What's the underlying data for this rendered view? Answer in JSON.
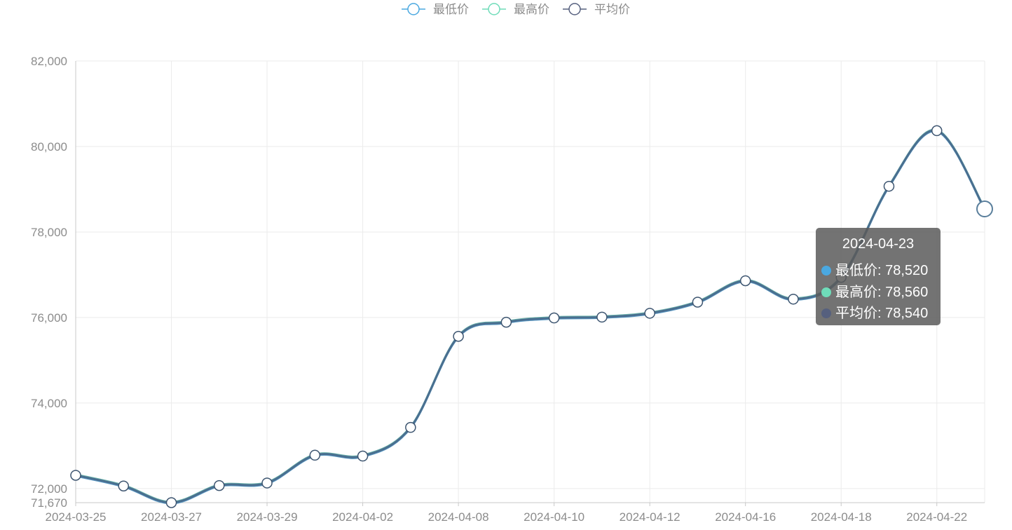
{
  "chart_data": {
    "type": "line",
    "categories": [
      "2024-03-25",
      "2024-03-26",
      "2024-03-27",
      "2024-03-28",
      "2024-03-29",
      "2024-04-01",
      "2024-04-02",
      "2024-04-03",
      "2024-04-08",
      "2024-04-09",
      "2024-04-10",
      "2024-04-11",
      "2024-04-12",
      "2024-04-15",
      "2024-04-16",
      "2024-04-17",
      "2024-04-18",
      "2024-04-19",
      "2024-04-22",
      "2024-04-23"
    ],
    "tick_labels": [
      "2024-03-25",
      "2024-03-27",
      "2024-03-29",
      "2024-04-02",
      "2024-04-08",
      "2024-04-10",
      "2024-04-12",
      "2024-04-16",
      "2024-04-18",
      "2024-04-22"
    ],
    "series": [
      {
        "name": "最低价",
        "color": "#4aa8e0",
        "values": [
          72290,
          72040,
          71650,
          72050,
          72110,
          72760,
          72740,
          73410,
          75540,
          75870,
          75970,
          75990,
          76080,
          76340,
          76840,
          76410,
          76920,
          79050,
          80350,
          78520
        ]
      },
      {
        "name": "最高价",
        "color": "#6fdcb9",
        "values": [
          72330,
          72080,
          71690,
          72090,
          72150,
          72800,
          72780,
          73450,
          75580,
          75910,
          76010,
          76030,
          76120,
          76380,
          76880,
          76450,
          76960,
          79090,
          80390,
          78560
        ]
      },
      {
        "name": "平均价",
        "color": "#56607e",
        "values": [
          72310,
          72060,
          71670,
          72070,
          72130,
          72780,
          72760,
          73430,
          75560,
          75890,
          75990,
          76010,
          76100,
          76360,
          76860,
          76430,
          76940,
          79070,
          80370,
          78540
        ]
      }
    ],
    "ylim": [
      71670,
      82000
    ],
    "y_ticks": [
      "82,000",
      "80,000",
      "78,000",
      "76,000",
      "74,000",
      "72,000",
      "71,670"
    ],
    "y_tick_values": [
      82000,
      80000,
      78000,
      76000,
      74000,
      72000,
      71670
    ],
    "grid": true,
    "legend": "top-center",
    "line_color": "#4a6f90"
  },
  "tooltip": {
    "title": "2024-04-23",
    "rows": [
      {
        "label": "最低价: 78,520",
        "color": "#4aa8e0"
      },
      {
        "label": "最高价: 78,560",
        "color": "#6fdcb9"
      },
      {
        "label": "平均价: 78,540",
        "color": "#56607e"
      }
    ]
  }
}
